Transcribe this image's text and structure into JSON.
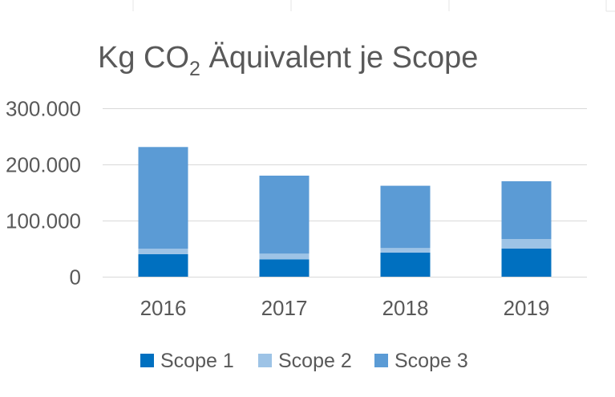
{
  "chart_data": {
    "type": "bar",
    "stacked": true,
    "title": {
      "main": "Kg CO",
      "subscript": "2",
      "rest": " Äquivalent je Scope"
    },
    "categories": [
      "2016",
      "2017",
      "2018",
      "2019"
    ],
    "series": [
      {
        "name": "Scope 1",
        "color": "#0070c0",
        "values": [
          40000,
          31000,
          43000,
          50000
        ]
      },
      {
        "name": "Scope 2",
        "color": "#9dc3e6",
        "values": [
          10000,
          10000,
          8000,
          17000
        ]
      },
      {
        "name": "Scope 3",
        "color": "#5b9bd5",
        "values": [
          181000,
          139000,
          111000,
          103000
        ]
      }
    ],
    "yticks": [
      {
        "value": 0,
        "label": "0"
      },
      {
        "value": 100000,
        "label": "100.000"
      },
      {
        "value": 200000,
        "label": "200.000"
      },
      {
        "value": 300000,
        "label": "300.000"
      }
    ],
    "ylim": [
      0,
      300000
    ],
    "grid": true,
    "legend_position": "bottom",
    "xlabel": "",
    "ylabel": ""
  }
}
